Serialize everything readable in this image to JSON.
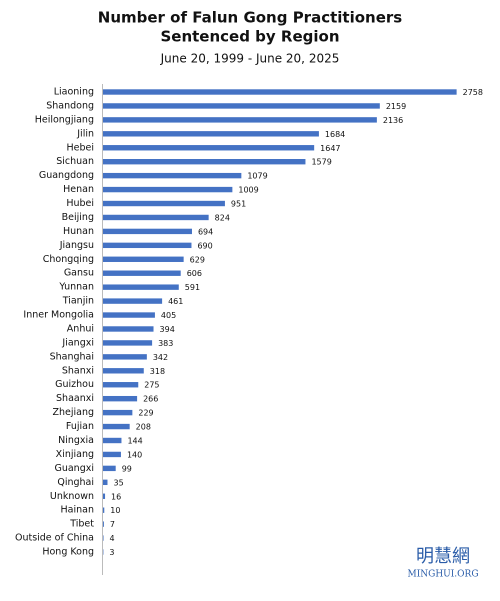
{
  "chart_data": {
    "type": "barh",
    "title": [
      "Number of Falun Gong Practitioners",
      "Sentenced by Region"
    ],
    "subtitle": "June 20, 1999 - June 20, 2025",
    "categories": [
      "Liaoning",
      "Shandong",
      "Heilongjiang",
      "Jilin",
      "Hebei",
      "Sichuan",
      "Guangdong",
      "Henan",
      "Hubei",
      "Beijing",
      "Hunan",
      "Jiangsu",
      "Chongqing",
      "Gansu",
      "Yunnan",
      "Tianjin",
      "Inner Mongolia",
      "Anhui",
      "Jiangxi",
      "Shanghai",
      "Shanxi",
      "Guizhou",
      "Shaanxi",
      "Zhejiang",
      "Fujian",
      "Ningxia",
      "Xinjiang",
      "Guangxi",
      "Qinghai",
      "Unknown",
      "Hainan",
      "Tibet",
      "Outside of China",
      "Hong Kong"
    ],
    "values": [
      2758,
      2159,
      2136,
      1684,
      1647,
      1579,
      1079,
      1009,
      951,
      824,
      694,
      690,
      629,
      606,
      591,
      461,
      405,
      394,
      383,
      342,
      318,
      275,
      266,
      229,
      208,
      144,
      140,
      99,
      35,
      16,
      10,
      7,
      4,
      3
    ],
    "color": "#4472c4",
    "xlim": [
      0,
      2800
    ],
    "logo": "明慧網",
    "logo_subtext": "MINGHUI.ORG"
  }
}
